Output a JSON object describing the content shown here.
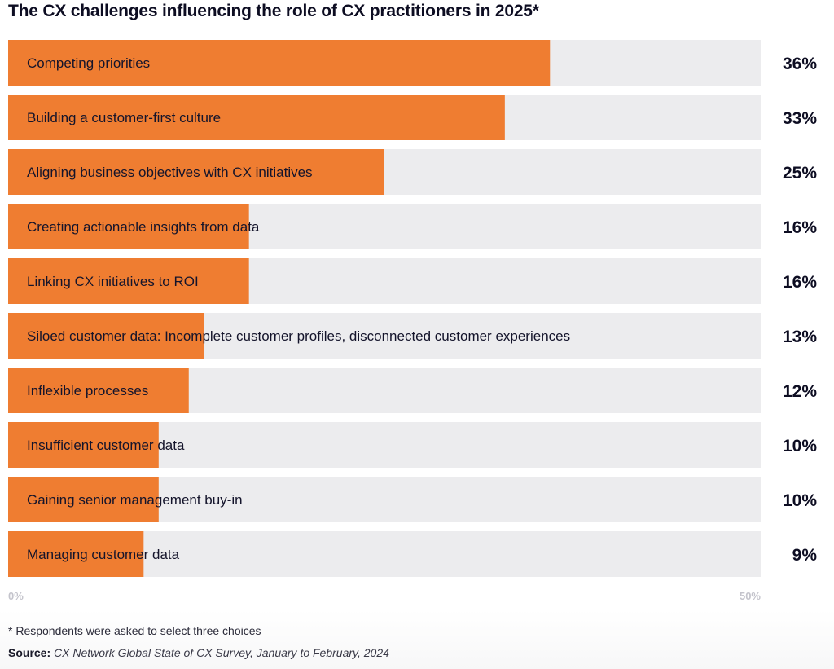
{
  "chart_data": {
    "type": "bar",
    "orientation": "horizontal",
    "title": "The CX challenges influencing the role of CX practitioners in 2025*",
    "categories": [
      "Competing priorities",
      "Building a customer-first culture",
      "Aligning business objectives with CX initiatives",
      "Creating actionable insights from data",
      "Linking CX initiatives to ROI",
      "Siloed customer data: Incomplete customer profiles, disconnected customer experiences",
      "Inflexible processes",
      "Insufficient customer data",
      "Gaining senior management buy-in",
      "Managing customer data"
    ],
    "values": [
      36,
      33,
      25,
      16,
      16,
      13,
      12,
      10,
      10,
      9
    ],
    "value_labels": [
      "36%",
      "33%",
      "25%",
      "16%",
      "16%",
      "13%",
      "12%",
      "10%",
      "10%",
      "9%"
    ],
    "xlim": [
      0,
      50
    ],
    "tick_labels": [
      "0%",
      "50%"
    ],
    "grid": false,
    "legend": "none",
    "colors": {
      "bar": "#ef7d31",
      "track": "#ececee"
    }
  },
  "footnote": "* Respondents were asked to select three choices",
  "source": {
    "label": "Source:",
    "text": "CX Network Global State of CX Survey, January to February, 2024"
  }
}
